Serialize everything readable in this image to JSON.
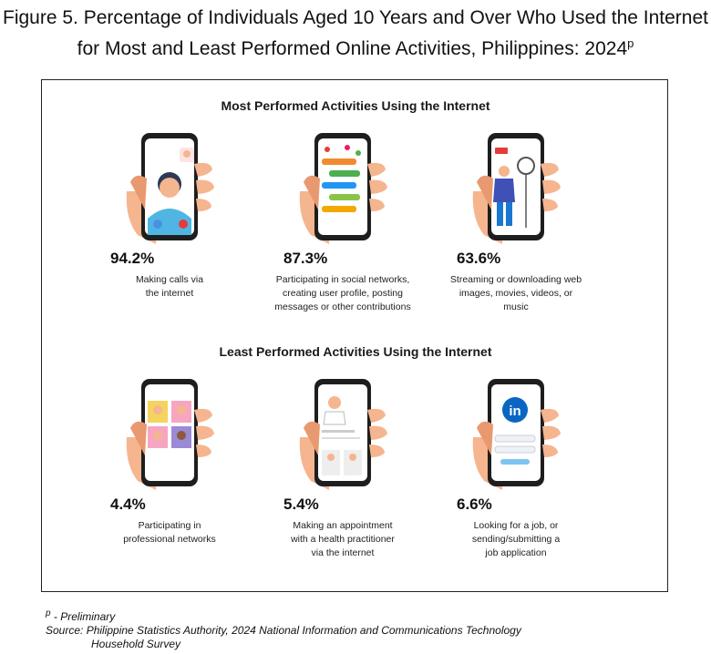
{
  "figure": {
    "title_line1": "Figure 5. Percentage of Individuals Aged 10 Years and Over Who Used the Internet",
    "title_line2": "for Most and Least Performed Online Activities, Philippines: 2024",
    "title_sup": "p"
  },
  "sections": {
    "most_title": "Most Performed Activities Using the Internet",
    "least_title": "Least Performed Activities Using the Internet"
  },
  "chart_data": {
    "type": "table",
    "title": "Percentage of Individuals Aged 10 Years and Over Who Used the Internet for Most and Least Performed Online Activities, Philippines: 2024",
    "unit": "%",
    "groups": [
      {
        "name": "Most Performed Activities Using the Internet",
        "items": [
          {
            "value": 94.2,
            "label": "94.2%",
            "desc": [
              "Making calls via",
              "the internet"
            ],
            "icon": "video-call-icon"
          },
          {
            "value": 87.3,
            "label": "87.3%",
            "desc": [
              "Participating in social networks,",
              "creating user profile, posting",
              "messages or other contributions"
            ],
            "icon": "social-network-icon"
          },
          {
            "value": 63.6,
            "label": "63.6%",
            "desc": [
              "Streaming or downloading web",
              "images, movies, videos, or",
              "music"
            ],
            "icon": "live-streaming-icon"
          }
        ]
      },
      {
        "name": "Least Performed Activities Using the Internet",
        "items": [
          {
            "value": 4.4,
            "label": "4.4%",
            "desc": [
              "Participating in",
              "professional networks"
            ],
            "icon": "group-video-meeting-icon"
          },
          {
            "value": 5.4,
            "label": "5.4%",
            "desc": [
              "Making an appointment",
              "with a health practitioner",
              "via the internet"
            ],
            "icon": "doctor-appointment-icon"
          },
          {
            "value": 6.6,
            "label": "6.6%",
            "desc": [
              "Looking for a job, or",
              "sending/submitting a",
              "job application"
            ],
            "icon": "linkedin-icon"
          }
        ]
      }
    ]
  },
  "footnote": {
    "prelim_mark": "p",
    "prelim_text": " - Preliminary",
    "source_line1": "Source: Philippine Statistics Authority, 2024 National Information and Communications Technology",
    "source_line2": "Household Survey"
  },
  "colors": {
    "skin": "#f5b58f",
    "skin_dark": "#e9996f",
    "phone": "#1e1e1e",
    "blue": "#4fb6e3",
    "red": "#e53b3b",
    "linkedin": "#0a66c2"
  }
}
